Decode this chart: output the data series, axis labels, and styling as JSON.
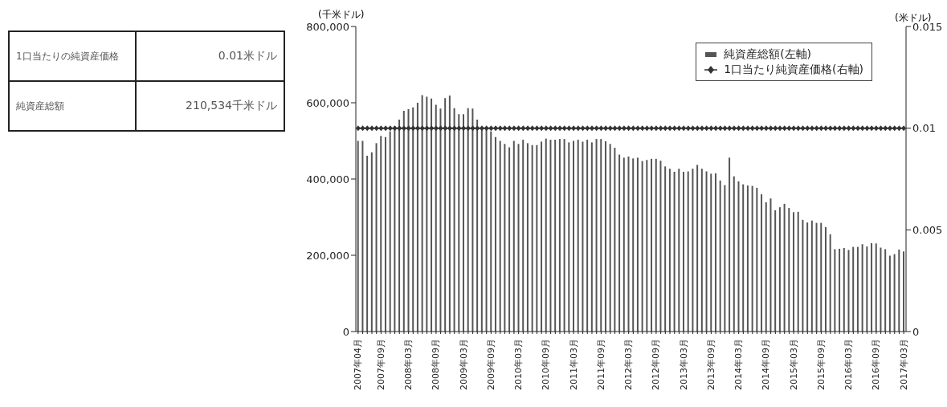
{
  "chart_data": {
    "type": "bar",
    "categories": [
      "2007年04月",
      null,
      null,
      null,
      null,
      "2007年09月",
      null,
      null,
      null,
      null,
      null,
      "2008年03月",
      null,
      null,
      null,
      null,
      null,
      "2008年09月",
      null,
      null,
      null,
      null,
      null,
      "2009年03月",
      null,
      null,
      null,
      null,
      null,
      "2009年09月",
      null,
      null,
      null,
      null,
      null,
      "2010年03月",
      null,
      null,
      null,
      null,
      null,
      "2010年09月",
      null,
      null,
      null,
      null,
      null,
      "2011年03月",
      null,
      null,
      null,
      null,
      null,
      "2011年09月",
      null,
      null,
      null,
      null,
      null,
      "2012年03月",
      null,
      null,
      null,
      null,
      null,
      "2012年09月",
      null,
      null,
      null,
      null,
      null,
      "2013年03月",
      null,
      null,
      null,
      null,
      null,
      "2013年09月",
      null,
      null,
      null,
      null,
      null,
      "2014年03月",
      null,
      null,
      null,
      null,
      null,
      "2014年09月",
      null,
      null,
      null,
      null,
      null,
      "2015年03月",
      null,
      null,
      null,
      null,
      null,
      "2015年09月",
      null,
      null,
      null,
      null,
      null,
      "2016年03月",
      null,
      null,
      null,
      null,
      null,
      "2016年09月",
      null,
      null,
      null,
      null,
      null,
      "2017年03月"
    ],
    "series": [
      {
        "name": "純資産総額(左軸)",
        "color": "#555555",
        "values": [
          500000,
          500000,
          461000,
          470000,
          494000,
          513000,
          510000,
          525000,
          538000,
          556000,
          579000,
          583000,
          588000,
          600000,
          620000,
          616000,
          611000,
          595000,
          585000,
          612000,
          619000,
          586000,
          570000,
          570000,
          586000,
          585000,
          556000,
          535000,
          530000,
          525000,
          510000,
          500000,
          492000,
          483000,
          500000,
          492000,
          503000,
          494000,
          489000,
          489000,
          498000,
          506000,
          503000,
          503000,
          505000,
          505000,
          496000,
          500000,
          503000,
          498000,
          503000,
          496000,
          505000,
          505000,
          499000,
          492000,
          482000,
          464000,
          456000,
          459000,
          454000,
          456000,
          447000,
          450000,
          453000,
          453000,
          448000,
          433000,
          427000,
          419000,
          427000,
          419000,
          420000,
          427000,
          437000,
          427000,
          420000,
          414000,
          415000,
          396000,
          384000,
          456000,
          407000,
          394000,
          386000,
          383000,
          382000,
          377000,
          360000,
          339000,
          349000,
          318000,
          326000,
          335000,
          324000,
          313000,
          314000,
          293000,
          286000,
          291000,
          285000,
          285000,
          274000,
          255000,
          216000,
          217000,
          219000,
          214000,
          222000,
          222000,
          229000,
          223000,
          232000,
          231000,
          220000,
          216000,
          199000,
          203000,
          215000,
          210000
        ]
      },
      {
        "name": "1口当たり純資産価格(右軸)",
        "type": "line",
        "axis": "y2",
        "color": "#333333",
        "marker": "diamond",
        "values": [
          0.01,
          0.01,
          0.01,
          0.01,
          0.01,
          0.01,
          0.01,
          0.01,
          0.01,
          0.01,
          0.01,
          0.01,
          0.01,
          0.01,
          0.01,
          0.01,
          0.01,
          0.01,
          0.01,
          0.01,
          0.01,
          0.01,
          0.01,
          0.01,
          0.01,
          0.01,
          0.01,
          0.01,
          0.01,
          0.01,
          0.01,
          0.01,
          0.01,
          0.01,
          0.01,
          0.01,
          0.01,
          0.01,
          0.01,
          0.01,
          0.01,
          0.01,
          0.01,
          0.01,
          0.01,
          0.01,
          0.01,
          0.01,
          0.01,
          0.01,
          0.01,
          0.01,
          0.01,
          0.01,
          0.01,
          0.01,
          0.01,
          0.01,
          0.01,
          0.01,
          0.01,
          0.01,
          0.01,
          0.01,
          0.01,
          0.01,
          0.01,
          0.01,
          0.01,
          0.01,
          0.01,
          0.01,
          0.01,
          0.01,
          0.01,
          0.01,
          0.01,
          0.01,
          0.01,
          0.01,
          0.01,
          0.01,
          0.01,
          0.01,
          0.01,
          0.01,
          0.01,
          0.01,
          0.01,
          0.01,
          0.01,
          0.01,
          0.01,
          0.01,
          0.01,
          0.01,
          0.01,
          0.01,
          0.01,
          0.01,
          0.01,
          0.01,
          0.01,
          0.01,
          0.01,
          0.01,
          0.01,
          0.01,
          0.01,
          0.01,
          0.01,
          0.01,
          0.01,
          0.01,
          0.01,
          0.01,
          0.01,
          0.01,
          0.01,
          0.01
        ]
      }
    ],
    "ylabel": "(千米ドル)",
    "y2label": "(米ドル)",
    "ylim": [
      0,
      800000
    ],
    "yticks": [
      0,
      {
        "value": 200000,
        "label": "200,000"
      },
      {
        "value": 400000,
        "label": "400,000"
      },
      {
        "value": 600000,
        "label": "600,000"
      },
      {
        "value": 800000,
        "label": "800,000"
      }
    ],
    "y2lim": [
      0,
      0.015
    ],
    "y2ticks": [
      0,
      0.005,
      0.01,
      0.015
    ],
    "grid": false,
    "legend": "top right",
    "annotations": [
      "1口当たりの純資産価格",
      "0.01米ドル",
      "純資産総額",
      "210,534千米ドル"
    ]
  }
}
